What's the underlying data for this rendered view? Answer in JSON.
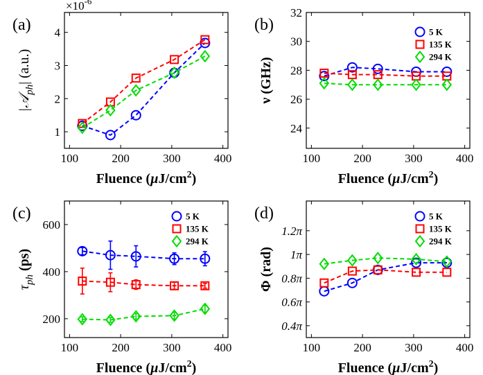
{
  "colors": {
    "s5K": "#0000ff",
    "s135K": "#ff0000",
    "s294K": "#00dd00"
  },
  "chart_data": [
    {
      "type": "line",
      "panel": "(a)",
      "xlabel": "Fluence (µJ/cm2)",
      "xlabel_main": "Fluence (",
      "xlabel_mu": "µ",
      "xlabel_unit": "J/cm",
      "xlabel_sup": "2",
      "xlabel_close": ")",
      "ylabel": "|𝒜ph| (a.u.)",
      "ylabel_main": "|𝒜",
      "ylabel_sub": "ph",
      "ylabel_end": "| (a.u.)",
      "exponent_base": "×10",
      "exponent_power": "-6",
      "xlim": [
        90,
        410
      ],
      "ylim": [
        0.5,
        4.6
      ],
      "xticks": [
        100,
        200,
        300,
        400
      ],
      "xtick_labels": [
        "100",
        "200",
        "300",
        "400"
      ],
      "yticks": [
        1,
        2,
        3,
        4
      ],
      "ytick_labels": [
        "1",
        "2",
        "3",
        "4"
      ],
      "x": [
        125,
        180,
        230,
        305,
        365
      ],
      "series": [
        {
          "name": "5 K",
          "marker": "circle",
          "values": [
            1.18,
            0.9,
            1.5,
            2.78,
            3.68
          ]
        },
        {
          "name": "135 K",
          "marker": "square",
          "values": [
            1.25,
            1.9,
            2.62,
            3.18,
            3.78
          ]
        },
        {
          "name": "294 K",
          "marker": "diamond",
          "values": [
            1.12,
            1.65,
            2.25,
            2.78,
            3.28
          ]
        }
      ]
    },
    {
      "type": "line",
      "panel": "(b)",
      "xlabel": "Fluence (µJ/cm2)",
      "xlabel_main": "Fluence (",
      "xlabel_mu": "µ",
      "xlabel_unit": "J/cm",
      "xlabel_sup": "2",
      "xlabel_close": ")",
      "ylabel": "ν (GHz)",
      "xlim": [
        90,
        410
      ],
      "ylim": [
        22.6,
        32
      ],
      "xticks": [
        100,
        200,
        300,
        400
      ],
      "xtick_labels": [
        "100",
        "200",
        "300",
        "400"
      ],
      "yticks": [
        24,
        26,
        28,
        30,
        32
      ],
      "ytick_labels": [
        "24",
        "26",
        "28",
        "30",
        "32"
      ],
      "x": [
        125,
        180,
        230,
        305,
        365
      ],
      "series": [
        {
          "name": "5 K",
          "marker": "circle",
          "values": [
            27.6,
            28.2,
            28.1,
            27.9,
            27.9
          ]
        },
        {
          "name": "135 K",
          "marker": "square",
          "values": [
            27.8,
            27.7,
            27.7,
            27.6,
            27.6
          ]
        },
        {
          "name": "294 K",
          "marker": "diamond",
          "values": [
            27.1,
            27.0,
            27.0,
            27.0,
            27.0
          ]
        }
      ]
    },
    {
      "type": "line",
      "panel": "(c)",
      "xlabel": "Fluence (µJ/cm2)",
      "xlabel_main": "Fluence (",
      "xlabel_mu": "µ",
      "xlabel_unit": "J/cm",
      "xlabel_sup": "2",
      "xlabel_close": ")",
      "ylabel": "τph (ps)",
      "ylabel_main": "τ",
      "ylabel_sub": "ph",
      "ylabel_end": " (ps)",
      "xlim": [
        90,
        410
      ],
      "ylim": [
        120,
        700
      ],
      "xticks": [
        100,
        200,
        300,
        400
      ],
      "xtick_labels": [
        "100",
        "200",
        "300",
        "400"
      ],
      "yticks": [
        200,
        400,
        600
      ],
      "ytick_labels": [
        "200",
        "400",
        "600"
      ],
      "x": [
        125,
        180,
        230,
        305,
        365
      ],
      "series": [
        {
          "name": "5 K",
          "marker": "circle",
          "values": [
            487,
            470,
            465,
            455,
            455
          ],
          "errors": [
            15,
            60,
            45,
            25,
            30
          ]
        },
        {
          "name": "135 K",
          "marker": "square",
          "values": [
            360,
            355,
            345,
            340,
            340
          ],
          "errors": [
            55,
            40,
            20,
            15,
            10
          ]
        },
        {
          "name": "294 K",
          "marker": "diamond",
          "values": [
            198,
            195,
            210,
            213,
            242
          ],
          "errors": [
            10,
            10,
            12,
            15,
            15
          ]
        }
      ]
    },
    {
      "type": "line",
      "panel": "(d)",
      "xlabel": "Fluence (µJ/cm2)",
      "xlabel_main": "Fluence (",
      "xlabel_mu": "µ",
      "xlabel_unit": "J/cm",
      "xlabel_sup": "2",
      "xlabel_close": ")",
      "ylabel": "Φ (rad)",
      "xlim": [
        90,
        410
      ],
      "ylim": [
        0.3,
        1.45
      ],
      "xticks": [
        100,
        200,
        300,
        400
      ],
      "xtick_labels": [
        "100",
        "200",
        "300",
        "400"
      ],
      "yticks": [
        0.4,
        0.6,
        0.8,
        1.0,
        1.2
      ],
      "ytick_labels": [
        "0.4π",
        "0.6π",
        "0.8π",
        "1π",
        "1.2π"
      ],
      "x": [
        125,
        180,
        230,
        305,
        365
      ],
      "series": [
        {
          "name": "5 K",
          "marker": "circle",
          "values": [
            0.69,
            0.76,
            0.87,
            0.93,
            0.93
          ]
        },
        {
          "name": "135 K",
          "marker": "square",
          "values": [
            0.76,
            0.86,
            0.87,
            0.85,
            0.85
          ]
        },
        {
          "name": "294 K",
          "marker": "diamond",
          "values": [
            0.92,
            0.95,
            0.97,
            0.96,
            0.94
          ]
        }
      ]
    }
  ]
}
